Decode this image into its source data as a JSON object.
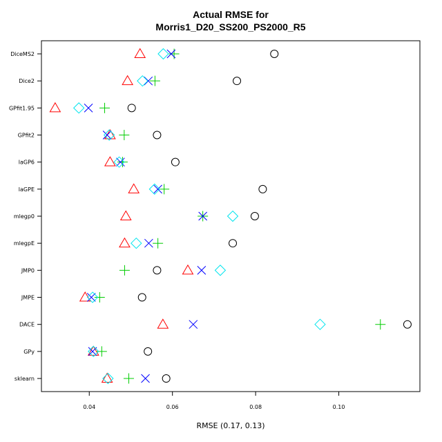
{
  "chart_data": {
    "type": "scatter",
    "title_line1": "Actual RMSE for",
    "title_line2": "Morris1_D20_SS200_PS2000_R5",
    "xlabel": "RMSE (0.17, 0.13)",
    "xlim": [
      0.0285,
      0.1195
    ],
    "xticks": [
      0.04,
      0.06,
      0.08,
      0.1
    ],
    "xtick_labels": [
      "0.04",
      "0.06",
      "0.08",
      "0.10"
    ],
    "grid": false,
    "categories": [
      "DiceMS2",
      "Dice2",
      "GPfit1.95",
      "GPfit2",
      "laGP6",
      "laGPE",
      "mlegp0",
      "mlegpE",
      "JMP0",
      "JMPE",
      "DACE",
      "GPy",
      "sklearn"
    ],
    "series": [
      {
        "marker": "circle",
        "color": "#000000",
        "values": [
          0.0845,
          0.0755,
          0.0502,
          0.0563,
          0.0607,
          0.0817,
          0.0798,
          0.0745,
          0.0563,
          0.0527,
          0.1165,
          0.0541,
          0.0585
        ]
      },
      {
        "marker": "triangle",
        "color": "#ff0000",
        "values": [
          0.0522,
          0.0492,
          0.0318,
          0.045,
          0.045,
          0.0507,
          0.0488,
          0.0485,
          0.0637,
          0.039,
          0.0577,
          0.041,
          0.0443
        ]
      },
      {
        "marker": "plus",
        "color": "#00cc00",
        "values": [
          0.0604,
          0.0558,
          0.0437,
          0.0484,
          0.048,
          0.058,
          0.0673,
          0.0565,
          0.0485,
          0.0425,
          0.11,
          0.043,
          0.0495
        ]
      },
      {
        "marker": "x",
        "color": "#0000ff",
        "values": [
          0.0597,
          0.0542,
          0.0398,
          0.0443,
          0.0475,
          0.0565,
          0.0673,
          0.0543,
          0.067,
          0.0405,
          0.065,
          0.0408,
          0.0535
        ]
      },
      {
        "marker": "diamond",
        "color": "#00e5ee",
        "values": [
          0.0578,
          0.0528,
          0.0375,
          0.0448,
          0.0472,
          0.0557,
          0.0745,
          0.0513,
          0.0715,
          0.0408,
          0.0955,
          0.041,
          0.0445
        ]
      }
    ]
  }
}
